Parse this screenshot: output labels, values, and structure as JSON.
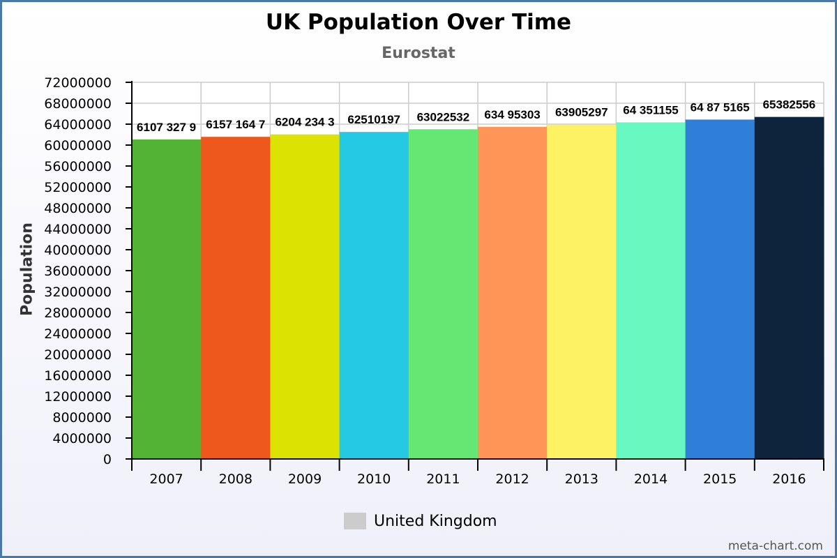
{
  "chart_data": {
    "type": "bar",
    "title": "UK Population Over Time",
    "subtitle": "Eurostat",
    "xlabel": "",
    "ylabel": "Population",
    "categories": [
      "2007",
      "2008",
      "2009",
      "2010",
      "2011",
      "2012",
      "2013",
      "2014",
      "2015",
      "2016"
    ],
    "series": [
      {
        "name": "United Kingdom",
        "values": [
          61073279,
          61571647,
          62042343,
          62510197,
          63022532,
          63495303,
          63905297,
          64351155,
          64875165,
          65382556
        ]
      }
    ],
    "data_labels": [
      "6107 327 9",
      "6157 164 7",
      "6204 234 3",
      "62510197",
      "63022532",
      "634 95303",
      "63905297",
      "64 351155",
      "64 87 5165",
      "65382556"
    ],
    "bar_colors": [
      "#52b334",
      "#ee581d",
      "#dce303",
      "#26c9e4",
      "#66e773",
      "#ff9556",
      "#fdf263",
      "#68f9c0",
      "#2f7ed8",
      "#0e233c"
    ],
    "ylim": [
      0,
      72000000
    ],
    "yticks": [
      0,
      4000000,
      8000000,
      12000000,
      16000000,
      20000000,
      24000000,
      28000000,
      32000000,
      36000000,
      40000000,
      44000000,
      48000000,
      52000000,
      56000000,
      60000000,
      64000000,
      68000000,
      72000000
    ],
    "grid": true,
    "legend": {
      "position": "bottom-center",
      "label": "United Kingdom",
      "color": "#cccccc"
    }
  },
  "credit": "meta-chart.com"
}
